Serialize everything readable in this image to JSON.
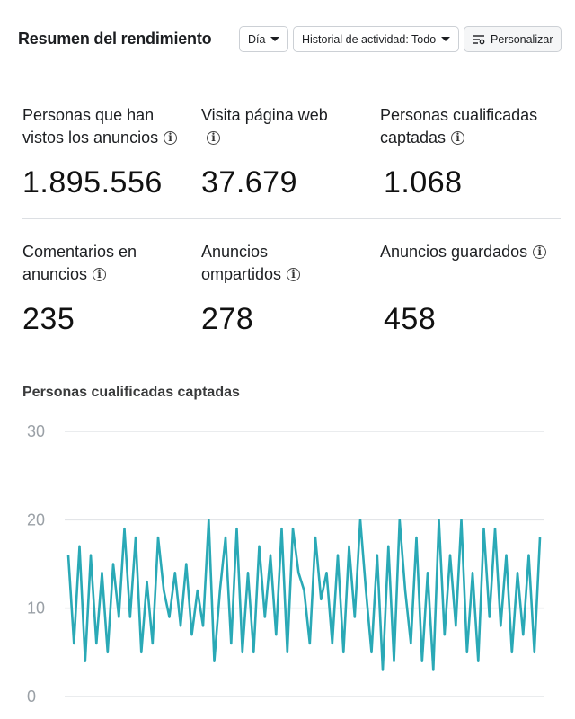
{
  "header": {
    "title": "Resumen del rendimiento",
    "day_label": "Día",
    "history_label": "Historial de actividad: Todo",
    "customize_label": "Personalizar",
    "customize_icon": "sliders-icon"
  },
  "metrics": [
    {
      "label": "Personas que han vistos los anuncios",
      "value": "1.895.556"
    },
    {
      "label": "Visita página web",
      "value": "37.679"
    },
    {
      "label": "Personas cualificadas captadas",
      "value": "1.068"
    },
    {
      "label": "Comentarios en anuncios",
      "value": "235"
    },
    {
      "label": "Anuncios ompartidos",
      "value": "278"
    },
    {
      "label": "Anuncios guardados",
      "value": "458"
    }
  ],
  "info_glyph": "i",
  "chart_data": {
    "type": "line",
    "title": "Personas cualificadas captadas",
    "xlabel": "",
    "ylabel": "",
    "ylim": [
      0,
      30
    ],
    "yticks": [
      "0",
      "10",
      "20",
      "30"
    ],
    "grid": true,
    "line_color": "#2aa9b6",
    "series": [
      {
        "values": [
          16,
          6,
          17,
          4,
          16,
          6,
          14,
          5,
          15,
          9,
          19,
          9,
          18,
          5,
          13,
          6,
          18,
          12,
          9,
          14,
          8,
          15,
          7,
          12,
          8,
          20,
          4,
          12,
          18,
          6,
          19,
          5,
          14,
          5,
          17,
          9,
          16,
          7,
          19,
          5,
          19,
          14,
          12,
          6,
          18,
          11,
          14,
          6,
          16,
          5,
          17,
          9,
          20,
          12,
          5,
          16,
          3,
          17,
          4,
          20,
          12,
          6,
          18,
          4,
          14,
          3,
          20,
          7,
          16,
          8,
          20,
          5,
          14,
          4,
          19,
          9,
          19,
          8,
          16,
          5,
          14,
          7,
          16,
          5,
          18
        ]
      }
    ]
  }
}
